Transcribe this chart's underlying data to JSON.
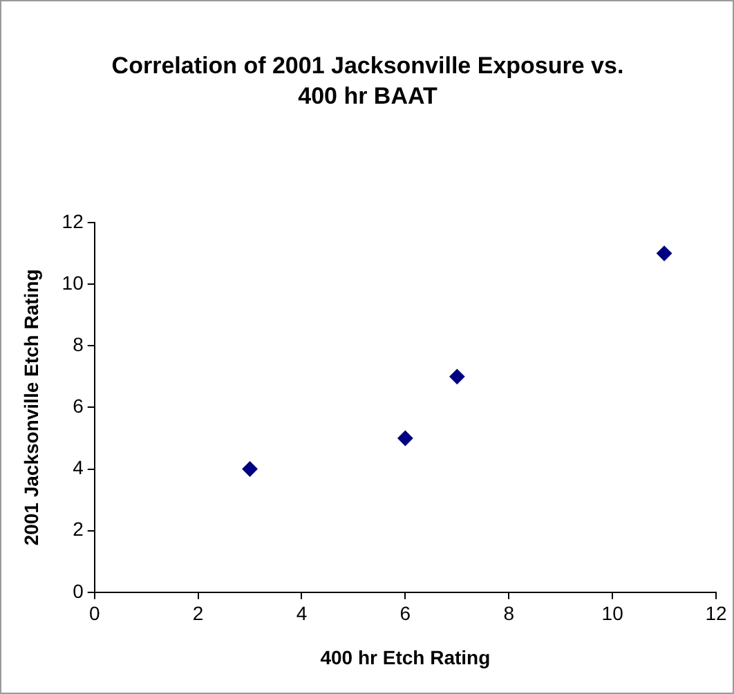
{
  "chart_data": {
    "type": "scatter",
    "title": "Correlation of 2001 Jacksonville Exposure vs. 400 hr BAAT",
    "xlabel": "400 hr Etch Rating",
    "ylabel": "2001 Jacksonville Etch Rating",
    "x": [
      3,
      6,
      7,
      11
    ],
    "values": [
      4,
      5,
      7,
      11
    ],
    "color": "#000080",
    "marker": "diamond",
    "xlim": [
      0,
      12
    ],
    "xticks": [
      0,
      2,
      4,
      6,
      8,
      10,
      12
    ],
    "ylim": [
      0,
      12
    ],
    "yticks": [
      0,
      2,
      4,
      6,
      8,
      10,
      12
    ],
    "grid": false,
    "legend": false
  }
}
